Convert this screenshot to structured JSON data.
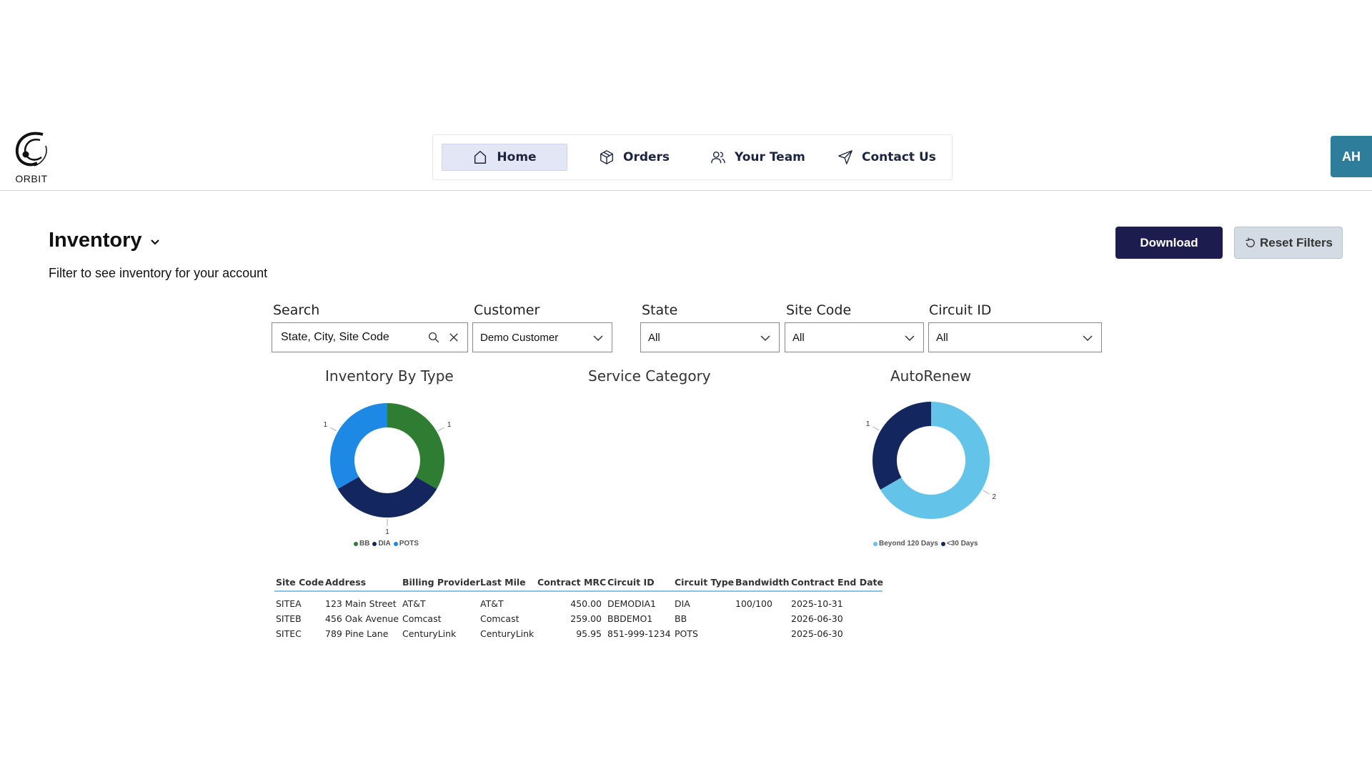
{
  "header": {
    "logo_text": "ORBIT",
    "nav": [
      {
        "label": "Home",
        "icon": "home-icon",
        "active": true
      },
      {
        "label": "Orders",
        "icon": "box-icon",
        "active": false
      },
      {
        "label": "Your Team",
        "icon": "users-icon",
        "active": false
      },
      {
        "label": "Contact Us",
        "icon": "send-icon",
        "active": false
      }
    ],
    "avatar_initials": "AH"
  },
  "page": {
    "title": "Inventory",
    "subtitle": "Filter to see inventory for your account",
    "download_label": "Download",
    "reset_label": "Reset Filters"
  },
  "filters": {
    "search": {
      "label": "Search",
      "placeholder": "State, City, Site Code"
    },
    "customer": {
      "label": "Customer",
      "value": "Demo Customer"
    },
    "state": {
      "label": "State",
      "value": "All"
    },
    "site_code": {
      "label": "Site Code",
      "value": "All"
    },
    "circuit_id": {
      "label": "Circuit ID",
      "value": "All"
    }
  },
  "chart_data": [
    {
      "type": "pie",
      "title": "Inventory By Type",
      "categories": [
        "BB",
        "DIA",
        "POTS"
      ],
      "values": [
        1,
        1,
        1
      ],
      "colors": [
        "#2e7d32",
        "#13275e",
        "#1e88e5"
      ],
      "legend": "bottom"
    },
    {
      "type": "pie",
      "title": "Service Category",
      "categories": [],
      "values": []
    },
    {
      "type": "pie",
      "title": "AutoRenew",
      "categories": [
        "Beyond 120 Days",
        "<30 Days"
      ],
      "values": [
        2,
        1
      ],
      "colors": [
        "#64c3e8",
        "#13275e"
      ],
      "legend": "bottom"
    }
  ],
  "table": {
    "columns": [
      "Site Code",
      "Address",
      "Billing Provider",
      "Last Mile",
      "Contract MRC",
      "Circuit ID",
      "Circuit Type",
      "Bandwidth",
      "Contract End Date"
    ],
    "rows": [
      [
        "SITEA",
        "123 Main Street",
        "AT&T",
        "AT&T",
        "450.00",
        "DEMODIA1",
        "DIA",
        "100/100",
        "2025-10-31"
      ],
      [
        "SITEB",
        "456 Oak Avenue",
        "Comcast",
        "Comcast",
        "259.00",
        "BBDEMO1",
        "BB",
        "",
        "2026-06-30"
      ],
      [
        "SITEC",
        "789 Pine Lane",
        "CenturyLink",
        "CenturyLink",
        "95.95",
        "851-999-1234",
        "POTS",
        "",
        "2025-06-30"
      ]
    ]
  }
}
